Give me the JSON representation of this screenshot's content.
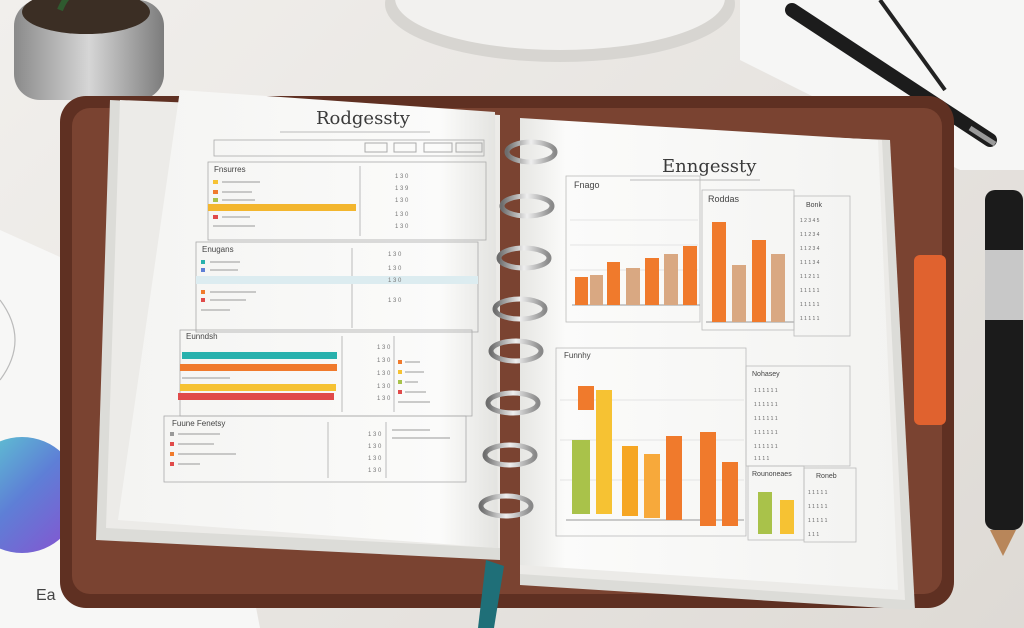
{
  "left_page": {
    "title": "Rodgessty",
    "sections": [
      {
        "heading": "Fnsurres"
      },
      {
        "heading": "Enugans"
      },
      {
        "heading": "Eunndsh"
      },
      {
        "heading": "Fuune Fenetsy"
      }
    ]
  },
  "right_page": {
    "title": "Enngessty",
    "panel_labels": [
      "Fnago",
      "Roddas",
      "Bonk",
      "Funnhy",
      "Nohasey",
      "Rounoneaes",
      "Roneb"
    ]
  },
  "paper_note": "Ea",
  "colors": {
    "orange": "#f07a2c",
    "tan": "#d9a882",
    "yellow": "#f6c233",
    "green": "#a9c24a",
    "teal": "#28b1ad",
    "red": "#e04a4a",
    "leather": "#6e3b2a",
    "ribbon": "#1f6f78"
  },
  "icons": [
    "plant-pot",
    "pen",
    "ballpoint-pen",
    "ring-binder"
  ]
}
